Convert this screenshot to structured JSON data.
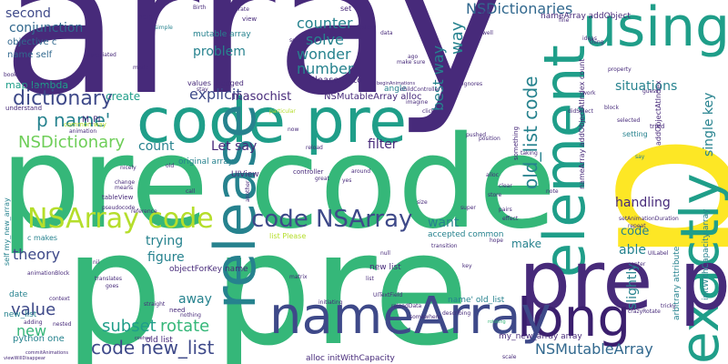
{
  "palette": {
    "navy": "#3b1f6e",
    "purple": "#472a7a",
    "indigo": "#3e4989",
    "blue": "#31688e",
    "teal": "#26828e",
    "sea": "#1f9e89",
    "green": "#35b779",
    "lime": "#6ece58",
    "yellow": "#b5de2b",
    "gold": "#fde725"
  },
  "words": {
    "array": "array",
    "p_big": "p",
    "pre_code": "pre code",
    "code_pre": "code pre",
    "p_pre": "p pre",
    "element": "element",
    "using": "using",
    "exactly": "exactly",
    "release": "release",
    "pre_p": "pre p",
    "long": "long",
    "nameArray": "nameArray",
    "NSArray_code": "NSArray code",
    "code_NSArray": "code NSArray",
    "old_list_code": "old_list code",
    "NSDictionaries": "NSDictionaries",
    "NSMutableArray": "NSMutableArray",
    "NSDictionary": "NSDictionary",
    "dictionary": "dictionary",
    "p_name": "p name'",
    "code_new_list": "code new_list",
    "subset": "subset",
    "rotate": "rotate",
    "value": "value",
    "theory": "theory",
    "new": "new",
    "second": "second",
    "conjunction": "conjunction",
    "objective_c": "objective c",
    "name_self": "name self",
    "map_lambda": "map lambda",
    "explicit": "explicit",
    "problem": "problem",
    "counter": "counter",
    "solve": "solve",
    "wonder": "wonder",
    "number": "number",
    "best_way": "best way",
    "way": "way",
    "situations": "situations",
    "single_key": "single key",
    "masochist": "masochist",
    "create": "create",
    "count": "count",
    "let_say": "Let say",
    "filter": "filter",
    "handling": "handling",
    "want": "want",
    "trying": "trying",
    "figure": "figure",
    "away": "away",
    "make": "make",
    "able": "able",
    "slightly": "slightly",
    "code": "code",
    "mutable_array": "mutable array",
    "please_note": "Please note",
    "values_dredged": "values dredged",
    "nsmutablearray_alloc": "NSMutableArray alloc",
    "uiview": "UIView",
    "original_array": "original array",
    "accepted_common": "accepted common",
    "list_please": "list Please",
    "new_list": "new list",
    "name_old_list": "name' old_list",
    "my_new_array": "my_new_array array",
    "alloc_initwith": "alloc initWithCapacity",
    "python_one": "python one",
    "objectforkey_name": "objectForKey name",
    "old_list": "old list",
    "date": "date",
    "new_list_u": "new_list",
    "c_makes": "c makes",
    "self_my_new_array": "self my_new_array",
    "angle": "angle",
    "m_pi": "M_PI",
    "namearray_addobject": "nameArray addObject",
    "namearray_addobjectatindex": "nameArray addObjectAtIndex count",
    "addobjectatindex": "addObjectAtIndex",
    "initwithcapacity_array": "initWithCapacity array",
    "arbitrary_attribute": "arbitrary attribute",
    "view": "view",
    "set": "set",
    "cell": "cell",
    "help": "help",
    "birth": "Birth",
    "data": "data",
    "simple": "simple",
    "made": "made",
    "ignores": "ignores",
    "guess": "guess",
    "tried": "tried",
    "setting": "setting",
    "say": "say",
    "selected": "selected",
    "something": "something",
    "taking": "taking",
    "controller": "controller",
    "great": "great",
    "around": "around",
    "nicely": "nicely",
    "tableview": "tableView",
    "pseudocode": "pseudocode",
    "call": "call",
    "need": "need",
    "nothing": "nothing",
    "translates": "translates",
    "goes": "goes",
    "context": "context",
    "nested": "nested",
    "adding": "adding",
    "coehoe": "coehoe",
    "straight": "straight",
    "matrix": "matrix",
    "initiating": "initiating",
    "reloaddata": "reloadData",
    "somewhere": "somewhere",
    "describing": "describing",
    "pairs": "pairs",
    "hope": "hope",
    "effect": "effect",
    "transition": "transition",
    "key": "key",
    "repeat": "repeat",
    "tricky": "tricky",
    "crazyrotate": "crazyRotate",
    "center": "center",
    "commitanimations": "commitAnimations",
    "viewwilldisappear": "viewWillDisappear",
    "scale": "scale",
    "rotating": "rotating",
    "clicked": "clicked",
    "imagine": "imagine",
    "stay": "stay",
    "appreciated": "appreciated",
    "book": "book",
    "understand": "understand",
    "common_way": "common way",
    "animation": "animation",
    "another": "another",
    "particular": "particular",
    "iterate": "iterate",
    "property": "property",
    "pushed": "pushed",
    "position": "position",
    "childcontroller": "childController",
    "beginanimations": "beginAnimations",
    "animationblock": "animationBlock",
    "setanimationduration": "setAnimationDuration",
    "change": "change",
    "means": "means",
    "reference": "reference",
    "nil": "nil",
    "uitextfield": "UITextField",
    "didselect": "didSelect",
    "list": "list",
    "null": "null",
    "reload": "reload",
    "seems": "seems",
    "thing": "thing",
    "note": "note",
    "work": "work",
    "fine": "fine",
    "block": "block",
    "uilabel": "UILabel",
    "well": "well",
    "ago": "ago",
    "make_sure": "make sure",
    "ideas": "ideas",
    "clear": "clear",
    "now": "now",
    "lambda_x": "lambda x",
    "store": "store",
    "old": "old",
    "size": "size",
    "yes": "yes",
    "fastest": "fastest",
    "alloc": "alloc",
    "super": "super"
  }
}
